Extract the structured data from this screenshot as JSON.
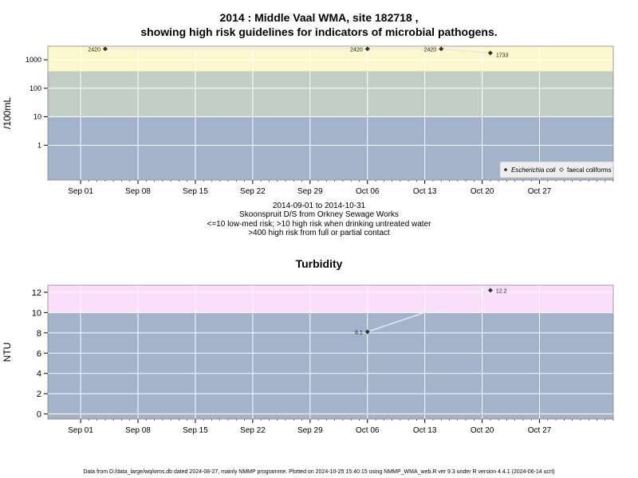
{
  "header": {
    "title_line1": "2014 : Middle Vaal WMA, site 182718 ,",
    "title_line2": "showing high risk guidelines for indicators of microbial pathogens."
  },
  "caption": {
    "line1": "2014-09-01 to 2014-10-31",
    "line2": "Skoonspruit D/S from Orkney Sewage Works",
    "line3": "<=10 low-med risk; >10 high risk when drinking untreated water",
    "line4": ">400 high risk from full or partial contact"
  },
  "footer": "Data from D:/data_large/wq/wms.db dated 2024-08-27, mainly NMMP programme. Plotted on 2024-10-25 15:40:15 using NMMP_WMA_web.R ver 9.3 under R version 4.4.1 (2024-06-14 ucrt)",
  "colors": {
    "band_low": "#a2b3cb",
    "band_mid": "#c2cdc3",
    "band_high": "#fdf8cc",
    "band_turb_high": "#fbdefa",
    "grid": "#ffffff",
    "line": "#e6e6ee",
    "point": "#333333"
  },
  "chart_data": [
    {
      "type": "scatter",
      "title": "",
      "ylabel": "/100mL",
      "xlabel": "",
      "yscale": "log",
      "ylim": [
        0.06,
        3000
      ],
      "xlim": [
        "2014-08-28",
        "2014-11-05"
      ],
      "y_ticks": [
        1,
        10,
        100,
        1000
      ],
      "y_tick_labels": [
        "1",
        "10",
        "100",
        "1000"
      ],
      "x_tick_labels": [
        "Sep 01",
        "Sep 08",
        "Sep 15",
        "Sep 22",
        "Sep 29",
        "Oct 06",
        "Oct 13",
        "Oct 20",
        "Oct 27"
      ],
      "x_ticks": [
        "2014-09-01",
        "2014-09-08",
        "2014-09-15",
        "2014-09-22",
        "2014-09-29",
        "2014-10-06",
        "2014-10-13",
        "2014-10-20",
        "2014-10-27"
      ],
      "bands": [
        {
          "from": 0.06,
          "to": 10
        },
        {
          "from": 10,
          "to": 400
        },
        {
          "from": 400,
          "to": 3000
        }
      ],
      "grid": true,
      "legend_position": "bottom-right",
      "series": [
        {
          "name": "Escherichia coli",
          "marker": "filled-diamond",
          "points": [
            {
              "x": "2014-09-04",
              "y": 2420,
              "label": "2420"
            },
            {
              "x": "2014-10-06",
              "y": 2420,
              "label": "2420"
            },
            {
              "x": "2014-10-15",
              "y": 2420,
              "label": "2420"
            },
            {
              "x": "2014-10-21",
              "y": 1733,
              "label": "1733"
            }
          ]
        },
        {
          "name": "faecal coliforms",
          "marker": "open-diamond",
          "points": []
        }
      ]
    },
    {
      "type": "scatter",
      "title": "Turbidity",
      "ylabel": "NTU",
      "xlabel": "",
      "yscale": "linear",
      "ylim": [
        -0.5,
        12.7
      ],
      "xlim": [
        "2014-08-28",
        "2014-11-05"
      ],
      "y_ticks": [
        0,
        2,
        4,
        6,
        8,
        10,
        12
      ],
      "y_tick_labels": [
        "0",
        "2",
        "4",
        "6",
        "8",
        "10",
        "12"
      ],
      "x_tick_labels": [
        "Sep 01",
        "Sep 08",
        "Sep 15",
        "Sep 22",
        "Sep 29",
        "Oct 06",
        "Oct 13",
        "Oct 20",
        "Oct 27"
      ],
      "x_ticks": [
        "2014-09-01",
        "2014-09-08",
        "2014-09-15",
        "2014-09-22",
        "2014-09-29",
        "2014-10-06",
        "2014-10-13",
        "2014-10-20",
        "2014-10-27"
      ],
      "bands": [
        {
          "from": -0.5,
          "to": 10
        },
        {
          "from": 10,
          "to": 12.7
        }
      ],
      "grid": true,
      "series": [
        {
          "name": "",
          "marker": "filled-diamond",
          "points": [
            {
              "x": "2014-10-06",
              "y": 8.1,
              "label": "8.1"
            },
            {
              "x": "2014-10-21",
              "y": 12.2,
              "label": "12.2"
            }
          ]
        }
      ]
    }
  ]
}
